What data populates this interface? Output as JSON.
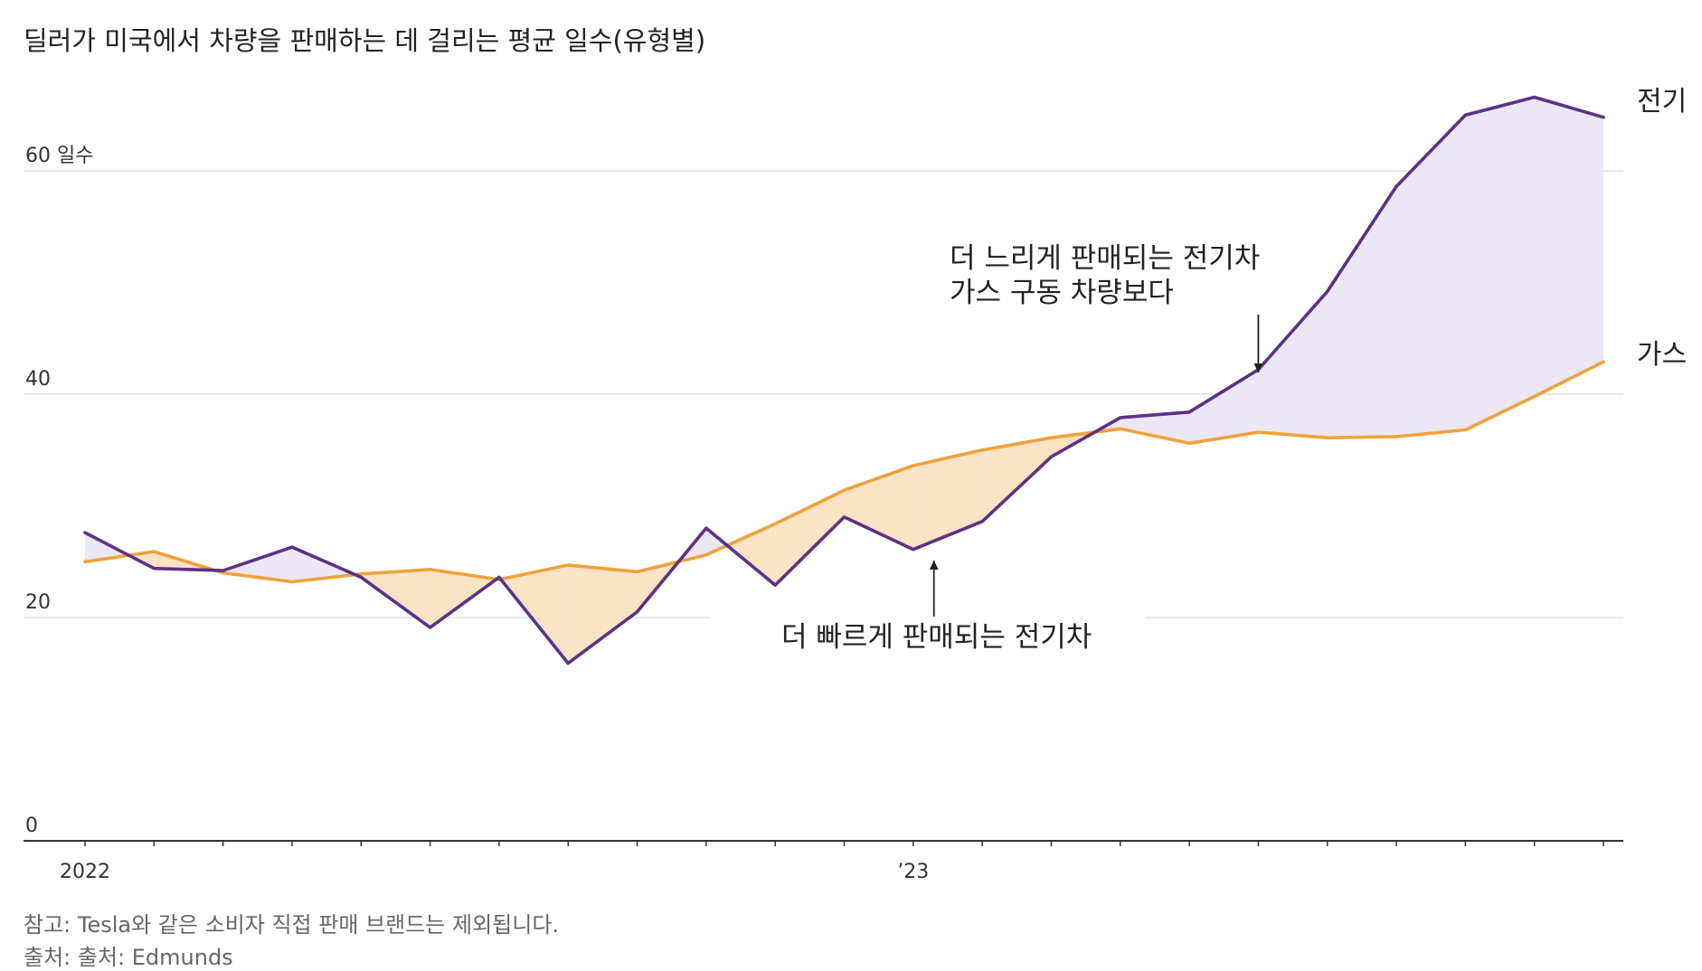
{
  "title": "딜러가 미국에서 차량을 판매하는 데 걸리는 평균 일수(유형별)",
  "footnotes": {
    "note": "참고: Tesla와 같은 소비자 직접 판매 브랜드는 제외됩니다.",
    "source": "출처: 출처: Edmunds"
  },
  "colors": {
    "electric": "#5a3286",
    "gas": "#f0a23b",
    "electric_fill": "#ece7f5",
    "gas_fill": "#fbe3c6",
    "grid": "#d9d9d9",
    "axis": "#333333"
  },
  "chart_data": {
    "type": "line",
    "title": "딜러가 미국에서 차량을 판매하는 데 걸리는 평균 일수(유형별)",
    "x_labels": [
      {
        "index": 0,
        "text": "2022"
      },
      {
        "index": 12,
        "text": "’23"
      }
    ],
    "num_periods": 23,
    "yticks": [
      {
        "value": 0,
        "label": "0"
      },
      {
        "value": 20,
        "label": "20"
      },
      {
        "value": 40,
        "label": "40"
      },
      {
        "value": 60,
        "label": "60 일수"
      }
    ],
    "ylim": [
      0,
      67
    ],
    "series": [
      {
        "name": "전기",
        "key": "electric",
        "values": [
          27.6,
          24.4,
          24.2,
          26.3,
          23.6,
          19.1,
          23.6,
          15.9,
          20.5,
          28.0,
          22.9,
          29.0,
          26.1,
          28.6,
          34.4,
          37.9,
          38.4,
          42.2,
          49.2,
          58.6,
          65.0,
          66.6,
          64.8
        ]
      },
      {
        "name": "가스",
        "key": "gas",
        "values": [
          25.0,
          25.9,
          24.0,
          23.2,
          23.9,
          24.3,
          23.4,
          24.7,
          24.1,
          25.6,
          28.4,
          31.4,
          33.6,
          35.0,
          36.1,
          36.9,
          35.6,
          36.6,
          36.1,
          36.2,
          36.8,
          39.8,
          42.9
        ]
      }
    ],
    "annotations": [
      {
        "lines": [
          "더 느리게 판매되는 전기차",
          "가스 구동 차량보다"
        ],
        "arrow_to_index": 17,
        "direction": "down"
      },
      {
        "lines": [
          "더 빠르게 판매되는 전기차"
        ],
        "arrow_to_index": 12.3,
        "direction": "up"
      }
    ]
  }
}
